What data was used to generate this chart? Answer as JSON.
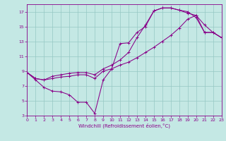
{
  "background_color": "#c4e8e4",
  "grid_color": "#96c8c4",
  "line_color": "#880088",
  "xlim": [
    0,
    23
  ],
  "ylim": [
    3,
    18
  ],
  "xticks": [
    0,
    1,
    2,
    3,
    4,
    5,
    6,
    7,
    8,
    9,
    10,
    11,
    12,
    13,
    14,
    15,
    16,
    17,
    18,
    19,
    20,
    21,
    22,
    23
  ],
  "yticks": [
    3,
    5,
    7,
    9,
    11,
    13,
    15,
    17
  ],
  "xlabel": "Windchill (Refroidissement éolien,°C)",
  "line1_x": [
    0,
    1,
    2,
    3,
    4,
    5,
    6,
    7,
    8,
    9,
    10,
    11,
    12,
    13,
    14,
    15,
    16,
    17,
    18,
    19,
    20,
    21,
    22,
    23
  ],
  "line1_y": [
    8.8,
    7.8,
    6.8,
    6.3,
    6.2,
    5.8,
    4.8,
    4.8,
    3.3,
    7.8,
    9.3,
    12.7,
    12.8,
    14.2,
    15.0,
    17.1,
    17.5,
    17.5,
    17.2,
    16.8,
    16.5,
    14.2,
    14.2,
    13.5
  ],
  "line2_x": [
    0,
    1,
    2,
    3,
    4,
    5,
    6,
    7,
    8,
    9,
    10,
    11,
    12,
    13,
    14,
    15,
    16,
    17,
    18,
    19,
    20,
    21,
    22,
    23
  ],
  "line2_y": [
    8.8,
    8.0,
    7.8,
    8.0,
    8.2,
    8.3,
    8.5,
    8.5,
    8.0,
    9.0,
    9.3,
    9.8,
    10.2,
    10.8,
    11.5,
    12.2,
    13.0,
    13.8,
    14.8,
    16.0,
    16.5,
    15.2,
    14.2,
    13.5
  ],
  "line3_x": [
    0,
    1,
    2,
    3,
    4,
    5,
    6,
    7,
    8,
    9,
    10,
    11,
    12,
    13,
    14,
    15,
    16,
    17,
    18,
    19,
    20,
    21,
    22,
    23
  ],
  "line3_y": [
    8.8,
    8.0,
    7.8,
    8.3,
    8.5,
    8.7,
    8.8,
    8.8,
    8.5,
    9.3,
    9.8,
    10.5,
    11.5,
    13.5,
    15.2,
    17.1,
    17.5,
    17.5,
    17.2,
    17.0,
    16.2,
    14.2,
    14.2,
    13.5
  ]
}
